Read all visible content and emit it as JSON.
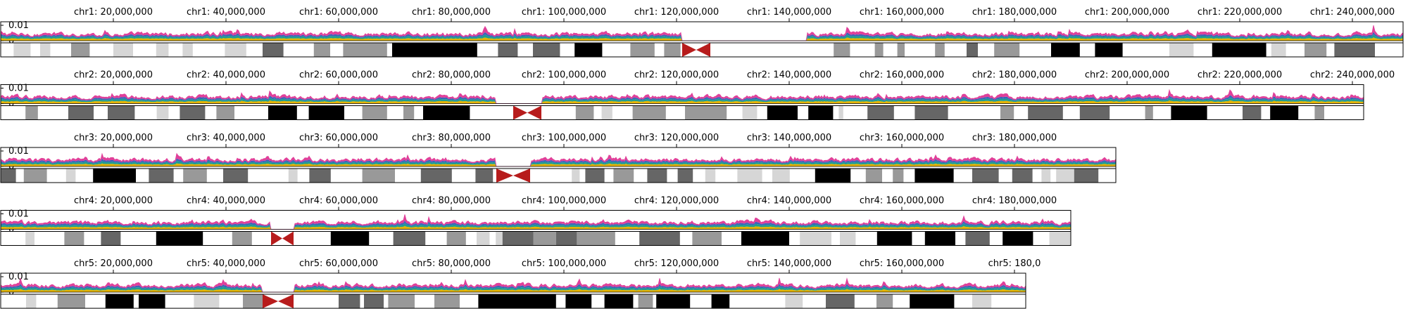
{
  "chart_data": {
    "type": "area",
    "y_ticks": [
      "0.01",
      "0"
    ],
    "colors": {
      "series_pink": "#e0409a",
      "series_blue": "#3a63b8",
      "series_teal": "#1f9e8e",
      "series_yellow": "#e6b400",
      "centromere": "#b71c1c",
      "gpos100": "#000000",
      "gpos75": "#666666",
      "gpos50": "#999999",
      "gpos25": "#d6d6d6",
      "gneg": "#ffffff"
    },
    "chromosomes": [
      {
        "name": "chr1",
        "length_mb": 249,
        "ticks": [
          {
            "pos_mb": 20,
            "label": "chr1: 20,000,000"
          },
          {
            "pos_mb": 40,
            "label": "chr1: 40,000,000"
          },
          {
            "pos_mb": 60,
            "label": "chr1: 60,000,000"
          },
          {
            "pos_mb": 80,
            "label": "chr1: 80,000,000"
          },
          {
            "pos_mb": 100,
            "label": "chr1: 100,000,000"
          },
          {
            "pos_mb": 120,
            "label": "chr1: 120,000,000"
          },
          {
            "pos_mb": 140,
            "label": "chr1: 140,000,000"
          },
          {
            "pos_mb": 160,
            "label": "chr1: 160,000,000"
          },
          {
            "pos_mb": 180,
            "label": "chr1: 180,000,000"
          },
          {
            "pos_mb": 200,
            "label": "chr1: 200,000,000"
          },
          {
            "pos_mb": 220,
            "label": "chr1: 220,000,000"
          },
          {
            "pos_mb": 240,
            "label": "chr1: 240,000,000"
          }
        ],
        "centromere_mb": [
          121,
          126
        ],
        "gaps_mb": [
          [
            125,
            143
          ]
        ],
        "bands": [
          [
            2.3,
            5.3,
            "gpos25"
          ],
          [
            7.0,
            8.8,
            "gpos25"
          ],
          [
            12.5,
            15.8,
            "gpos50"
          ],
          [
            20.0,
            23.5,
            "gpos25"
          ],
          [
            27.6,
            29.8,
            "gpos25"
          ],
          [
            32.3,
            34.1,
            "gpos25"
          ],
          [
            39.8,
            43.6,
            "gpos25"
          ],
          [
            46.5,
            50.2,
            "gpos75"
          ],
          [
            55.6,
            58.5,
            "gpos50"
          ],
          [
            60.8,
            68.6,
            "gpos50"
          ],
          [
            69.5,
            84.6,
            "gpos100"
          ],
          [
            88.3,
            91.8,
            "gpos75"
          ],
          [
            94.5,
            99.3,
            "gpos75"
          ],
          [
            101.9,
            106.8,
            "gpos100"
          ],
          [
            111.8,
            116.1,
            "gpos50"
          ],
          [
            117.8,
            120.7,
            "gpos50"
          ],
          [
            147.9,
            150.8,
            "gpos50"
          ],
          [
            155.2,
            156.7,
            "gpos50"
          ],
          [
            159.2,
            160.5,
            "gpos50"
          ],
          [
            165.9,
            167.6,
            "gpos50"
          ],
          [
            171.5,
            173.5,
            "gpos75"
          ],
          [
            176.4,
            180.9,
            "gpos50"
          ],
          [
            186.5,
            191.6,
            "gpos100"
          ],
          [
            194.3,
            199.2,
            "gpos100"
          ],
          [
            207.5,
            211.8,
            "gpos25"
          ],
          [
            215.1,
            224.7,
            "gpos100"
          ],
          [
            225.6,
            228.2,
            "gpos25"
          ],
          [
            231.5,
            235.4,
            "gpos50"
          ],
          [
            236.8,
            244.0,
            "gpos75"
          ]
        ]
      },
      {
        "name": "chr2",
        "length_mb": 242,
        "ticks": [
          {
            "pos_mb": 20,
            "label": "chr2: 20,000,000"
          },
          {
            "pos_mb": 40,
            "label": "chr2: 40,000,000"
          },
          {
            "pos_mb": 60,
            "label": "chr2: 60,000,000"
          },
          {
            "pos_mb": 80,
            "label": "chr2: 80,000,000"
          },
          {
            "pos_mb": 100,
            "label": "chr2: 100,000,000"
          },
          {
            "pos_mb": 120,
            "label": "chr2: 120,000,000"
          },
          {
            "pos_mb": 140,
            "label": "chr2: 140,000,000"
          },
          {
            "pos_mb": 160,
            "label": "chr2: 160,000,000"
          },
          {
            "pos_mb": 180,
            "label": "chr2: 180,000,000"
          },
          {
            "pos_mb": 200,
            "label": "chr2: 200,000,000"
          },
          {
            "pos_mb": 220,
            "label": "chr2: 220,000,000"
          },
          {
            "pos_mb": 240,
            "label": "chr2: 240,000,000"
          }
        ],
        "centromere_mb": [
          91,
          96
        ],
        "gaps_mb": [
          [
            88,
            91
          ]
        ],
        "bands": [
          [
            4.4,
            6.6,
            "gpos50"
          ],
          [
            12.0,
            16.5,
            "gpos75"
          ],
          [
            19.0,
            23.8,
            "gpos75"
          ],
          [
            27.7,
            29.8,
            "gpos25"
          ],
          [
            31.8,
            36.3,
            "gpos75"
          ],
          [
            38.3,
            41.5,
            "gpos50"
          ],
          [
            47.5,
            52.6,
            "gpos100"
          ],
          [
            54.7,
            61.0,
            "gpos100"
          ],
          [
            64.2,
            68.6,
            "gpos50"
          ],
          [
            71.5,
            73.4,
            "gpos50"
          ],
          [
            75.0,
            83.3,
            "gpos100"
          ],
          [
            102.1,
            105.3,
            "gpos50"
          ],
          [
            106.7,
            108.6,
            "gpos25"
          ],
          [
            112.2,
            118.1,
            "gpos50"
          ],
          [
            121.5,
            128.9,
            "gpos50"
          ],
          [
            131.7,
            134.3,
            "gpos25"
          ],
          [
            136.1,
            141.5,
            "gpos100"
          ],
          [
            143.4,
            147.8,
            "gpos100"
          ],
          [
            148.8,
            149.6,
            "gpos25"
          ],
          [
            153.9,
            158.6,
            "gpos75"
          ],
          [
            162.3,
            168.2,
            "gpos75"
          ],
          [
            177.5,
            179.9,
            "gpos50"
          ],
          [
            182.4,
            188.6,
            "gpos75"
          ],
          [
            191.6,
            196.9,
            "gpos75"
          ],
          [
            203.2,
            204.6,
            "gpos50"
          ],
          [
            207.8,
            214.2,
            "gpos100"
          ],
          [
            220.5,
            223.8,
            "gpos75"
          ],
          [
            225.4,
            230.4,
            "gpos100"
          ],
          [
            233.3,
            235.0,
            "gpos50"
          ]
        ]
      },
      {
        "name": "chr3",
        "length_mb": 198,
        "ticks": [
          {
            "pos_mb": 20,
            "label": "chr3: 20,000,000"
          },
          {
            "pos_mb": 40,
            "label": "chr3: 40,000,000"
          },
          {
            "pos_mb": 60,
            "label": "chr3: 60,000,000"
          },
          {
            "pos_mb": 80,
            "label": "chr3: 80,000,000"
          },
          {
            "pos_mb": 100,
            "label": "chr3: 100,000,000"
          },
          {
            "pos_mb": 120,
            "label": "chr3: 120,000,000"
          },
          {
            "pos_mb": 140,
            "label": "chr3: 140,000,000"
          },
          {
            "pos_mb": 160,
            "label": "chr3: 160,000,000"
          },
          {
            "pos_mb": 180,
            "label": "chr3: 180,000,000"
          }
        ],
        "centromere_mb": [
          88,
          94
        ],
        "gaps_mb": [],
        "bands": [
          [
            0.0,
            2.7,
            "gpos75"
          ],
          [
            4.1,
            8.2,
            "gpos50"
          ],
          [
            11.6,
            13.3,
            "gpos25"
          ],
          [
            16.4,
            24.0,
            "gpos100"
          ],
          [
            26.3,
            30.7,
            "gpos75"
          ],
          [
            32.4,
            36.6,
            "gpos50"
          ],
          [
            39.5,
            43.9,
            "gpos75"
          ],
          [
            51.1,
            52.7,
            "gpos25"
          ],
          [
            54.8,
            58.6,
            "gpos75"
          ],
          [
            64.2,
            70.0,
            "gpos50"
          ],
          [
            74.6,
            80.1,
            "gpos75"
          ],
          [
            84.3,
            87.4,
            "gpos75"
          ],
          [
            101.4,
            102.8,
            "gpos25"
          ],
          [
            103.8,
            107.2,
            "gpos75"
          ],
          [
            108.8,
            112.4,
            "gpos50"
          ],
          [
            114.8,
            118.3,
            "gpos75"
          ],
          [
            120.2,
            122.9,
            "gpos75"
          ],
          [
            125.1,
            126.9,
            "gpos25"
          ],
          [
            130.8,
            135.2,
            "gpos25"
          ],
          [
            137.0,
            140.1,
            "gpos25"
          ],
          [
            144.6,
            150.9,
            "gpos100"
          ],
          [
            153.6,
            156.5,
            "gpos50"
          ],
          [
            158.4,
            160.3,
            "gpos50"
          ],
          [
            162.3,
            169.2,
            "gpos100"
          ],
          [
            172.5,
            177.2,
            "gpos75"
          ],
          [
            179.6,
            183.2,
            "gpos75"
          ],
          [
            184.8,
            186.4,
            "gpos25"
          ],
          [
            187.4,
            190.6,
            "gpos25"
          ],
          [
            190.6,
            194.9,
            "gpos75"
          ]
        ]
      },
      {
        "name": "chr4",
        "length_mb": 190,
        "ticks": [
          {
            "pos_mb": 20,
            "label": "chr4: 20,000,000"
          },
          {
            "pos_mb": 40,
            "label": "chr4: 40,000,000"
          },
          {
            "pos_mb": 60,
            "label": "chr4: 60,000,000"
          },
          {
            "pos_mb": 80,
            "label": "chr4: 80,000,000"
          },
          {
            "pos_mb": 100,
            "label": "chr4: 100,000,000"
          },
          {
            "pos_mb": 120,
            "label": "chr4: 120,000,000"
          },
          {
            "pos_mb": 140,
            "label": "chr4: 140,000,000"
          },
          {
            "pos_mb": 160,
            "label": "chr4: 160,000,000"
          },
          {
            "pos_mb": 180,
            "label": "chr4: 180,000,000"
          }
        ],
        "centromere_mb": [
          48,
          52
        ],
        "gaps_mb": [],
        "bands": [
          [
            4.4,
            6.0,
            "gpos25"
          ],
          [
            11.3,
            14.8,
            "gpos50"
          ],
          [
            17.8,
            21.3,
            "gpos75"
          ],
          [
            27.6,
            35.9,
            "gpos100"
          ],
          [
            41.1,
            44.6,
            "gpos50"
          ],
          [
            58.6,
            65.4,
            "gpos100"
          ],
          [
            69.7,
            75.4,
            "gpos75"
          ],
          [
            79.2,
            82.6,
            "gpos50"
          ],
          [
            84.5,
            86.8,
            "gpos25"
          ],
          [
            87.9,
            89.1,
            "gpos25"
          ],
          [
            89.1,
            94.6,
            "gpos75"
          ],
          [
            94.6,
            98.6,
            "gpos50"
          ],
          [
            98.6,
            102.3,
            "gpos75"
          ],
          [
            102.3,
            109.1,
            "gpos50"
          ],
          [
            113.4,
            120.6,
            "gpos75"
          ],
          [
            122.8,
            128.0,
            "gpos50"
          ],
          [
            131.5,
            140.0,
            "gpos100"
          ],
          [
            141.9,
            147.5,
            "gpos25"
          ],
          [
            149.0,
            151.8,
            "gpos25"
          ],
          [
            155.6,
            161.8,
            "gpos100"
          ],
          [
            164.1,
            169.5,
            "gpos100"
          ],
          [
            171.3,
            175.6,
            "gpos75"
          ],
          [
            177.9,
            183.3,
            "gpos100"
          ],
          [
            186.2,
            190.0,
            "gpos25"
          ]
        ]
      },
      {
        "name": "chr5",
        "length_mb": 182,
        "ticks": [
          {
            "pos_mb": 20,
            "label": "chr5: 20,000,000"
          },
          {
            "pos_mb": 40,
            "label": "chr5: 40,000,000"
          },
          {
            "pos_mb": 60,
            "label": "chr5: 60,000,000"
          },
          {
            "pos_mb": 80,
            "label": "chr5: 80,000,000"
          },
          {
            "pos_mb": 100,
            "label": "chr5: 100,000,000"
          },
          {
            "pos_mb": 120,
            "label": "chr5: 120,000,000"
          },
          {
            "pos_mb": 140,
            "label": "chr5: 140,000,000"
          },
          {
            "pos_mb": 160,
            "label": "chr5: 160,000,000"
          },
          {
            "pos_mb": 180,
            "label": "chr5: 180,0"
          }
        ],
        "centromere_mb": [
          46.5,
          52
        ],
        "gaps_mb": [
          [
            50,
            51
          ]
        ],
        "bands": [
          [
            4.5,
            6.3,
            "gpos25"
          ],
          [
            10.1,
            15.0,
            "gpos50"
          ],
          [
            18.6,
            23.6,
            "gpos100"
          ],
          [
            24.7,
            25.8,
            "gpos25"
          ],
          [
            24.5,
            29.2,
            "gpos100"
          ],
          [
            34.3,
            38.8,
            "gpos25"
          ],
          [
            43.0,
            46.8,
            "gpos50"
          ],
          [
            60.0,
            63.8,
            "gpos75"
          ],
          [
            64.5,
            68.0,
            "gpos75"
          ],
          [
            68.8,
            73.5,
            "gpos50"
          ],
          [
            77.0,
            81.5,
            "gpos50"
          ],
          [
            84.8,
            98.6,
            "gpos100"
          ],
          [
            100.3,
            104.9,
            "gpos100"
          ],
          [
            107.2,
            112.3,
            "gpos100"
          ],
          [
            113.2,
            115.8,
            "gpos50"
          ],
          [
            116.4,
            122.4,
            "gpos100"
          ],
          [
            126.2,
            129.4,
            "gpos100"
          ],
          [
            139.3,
            142.4,
            "gpos25"
          ],
          [
            146.5,
            151.6,
            "gpos75"
          ],
          [
            155.5,
            158.4,
            "gpos50"
          ],
          [
            161.4,
            169.3,
            "gpos100"
          ],
          [
            172.5,
            175.9,
            "gpos25"
          ]
        ]
      }
    ]
  }
}
